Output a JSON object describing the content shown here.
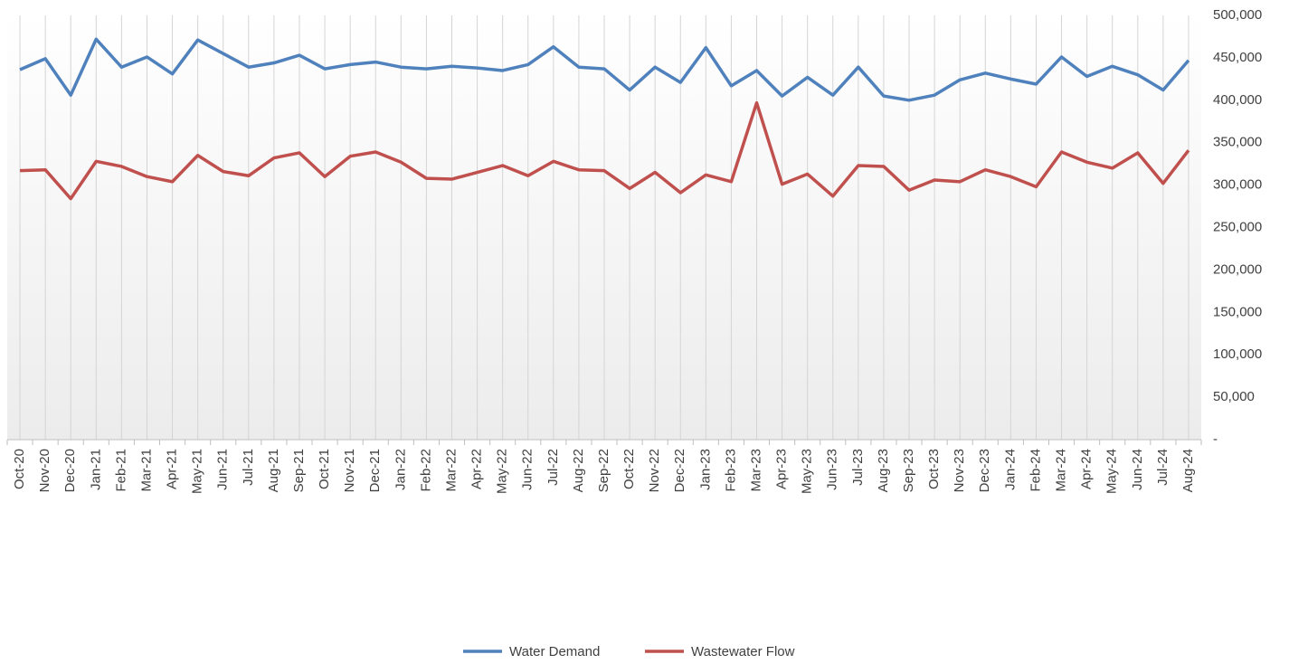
{
  "chart_data": {
    "type": "line",
    "categories": [
      "Oct-20",
      "Nov-20",
      "Dec-20",
      "Jan-21",
      "Feb-21",
      "Mar-21",
      "Apr-21",
      "May-21",
      "Jun-21",
      "Jul-21",
      "Aug-21",
      "Sep-21",
      "Oct-21",
      "Nov-21",
      "Dec-21",
      "Jan-22",
      "Feb-22",
      "Mar-22",
      "Apr-22",
      "May-22",
      "Jun-22",
      "Jul-22",
      "Aug-22",
      "Sep-22",
      "Oct-22",
      "Nov-22",
      "Dec-22",
      "Jan-23",
      "Feb-23",
      "Mar-23",
      "Apr-23",
      "May-23",
      "Jun-23",
      "Jul-23",
      "Aug-23",
      "Sep-23",
      "Oct-23",
      "Nov-23",
      "Dec-23",
      "Jan-24",
      "Feb-24",
      "Mar-24",
      "Apr-24",
      "May-24",
      "Jun-24",
      "Jul-24",
      "Aug-24"
    ],
    "series": [
      {
        "name": "Water Demand",
        "color": "#4f81bd",
        "values": [
          436000,
          449000,
          406000,
          472000,
          439000,
          451000,
          431000,
          471000,
          455000,
          439000,
          444000,
          453000,
          437000,
          442000,
          445000,
          439000,
          437000,
          440000,
          438000,
          435000,
          442000,
          463000,
          439000,
          437000,
          412000,
          439000,
          421000,
          462000,
          417000,
          435000,
          405000,
          427000,
          406000,
          439000,
          405000,
          400000,
          406000,
          424000,
          432000,
          425000,
          419000,
          451000,
          428000,
          440000,
          430000,
          412000,
          447000
        ]
      },
      {
        "name": "Wastewater Flow",
        "color": "#c0504d",
        "values": [
          317000,
          318000,
          284000,
          328000,
          322000,
          310000,
          304000,
          335000,
          316000,
          311000,
          332000,
          338000,
          310000,
          334000,
          339000,
          327000,
          308000,
          307000,
          315000,
          323000,
          311000,
          328000,
          318000,
          317000,
          296000,
          315000,
          291000,
          312000,
          304000,
          397000,
          301000,
          313000,
          287000,
          323000,
          322000,
          294000,
          306000,
          304000,
          318000,
          310000,
          298000,
          339000,
          327000,
          320000,
          338000,
          302000,
          341000
        ]
      }
    ],
    "ylim": [
      0,
      500000
    ],
    "yticks": [
      {
        "value": 0,
        "label": "-"
      },
      {
        "value": 50000,
        "label": "50,000"
      },
      {
        "value": 100000,
        "label": "100,000"
      },
      {
        "value": 150000,
        "label": "150,000"
      },
      {
        "value": 200000,
        "label": "200,000"
      },
      {
        "value": 250000,
        "label": "250,000"
      },
      {
        "value": 300000,
        "label": "300,000"
      },
      {
        "value": 350000,
        "label": "350,000"
      },
      {
        "value": 400000,
        "label": "400,000"
      },
      {
        "value": 450000,
        "label": "450,000"
      },
      {
        "value": 500000,
        "label": "500,000"
      }
    ],
    "legend": "bottom"
  }
}
